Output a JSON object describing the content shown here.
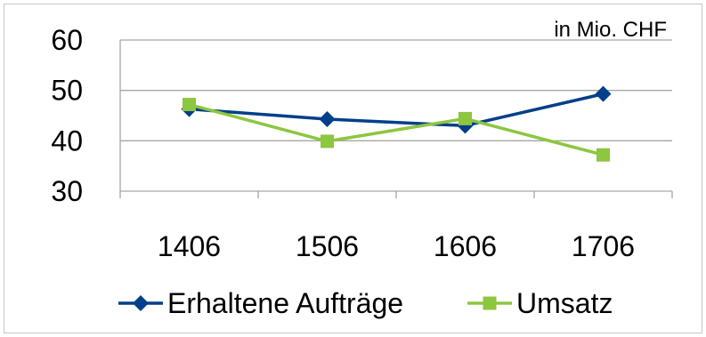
{
  "chart_data": {
    "type": "line",
    "title": "",
    "unit_label": "in Mio. CHF",
    "xlabel": "",
    "ylabel": "",
    "categories": [
      "1406",
      "1506",
      "1606",
      "1706"
    ],
    "ylim": [
      30,
      60
    ],
    "yticks": [
      30,
      40,
      50,
      60
    ],
    "grid": true,
    "legend_position": "bottom",
    "series": [
      {
        "name": "Erhaltene Aufträge",
        "values": [
          46.3,
          44.3,
          43.0,
          49.3
        ],
        "color": "#003f8a",
        "marker": "diamond"
      },
      {
        "name": "Umsatz",
        "values": [
          47.2,
          39.9,
          44.4,
          37.2
        ],
        "color": "#8dc63f",
        "marker": "square"
      }
    ]
  }
}
